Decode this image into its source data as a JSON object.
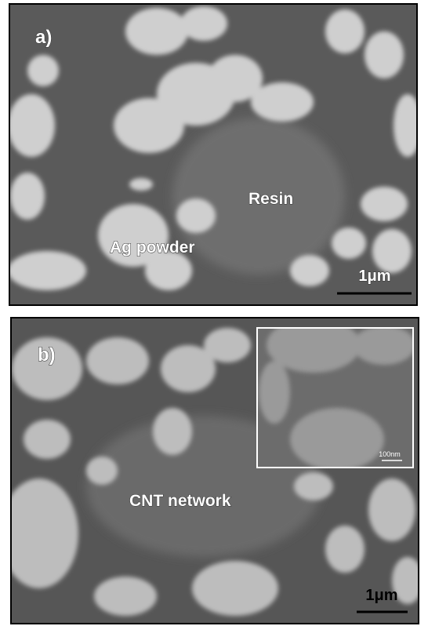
{
  "panels": [
    {
      "label": "a)",
      "annotations": [
        "Resin",
        "Ag powder"
      ],
      "scale_bar": "1μm"
    },
    {
      "label": "b)",
      "annotations": [
        "CNT network"
      ],
      "scale_bar": "1μm",
      "inset": {
        "scale_bar": "100nm"
      }
    }
  ]
}
